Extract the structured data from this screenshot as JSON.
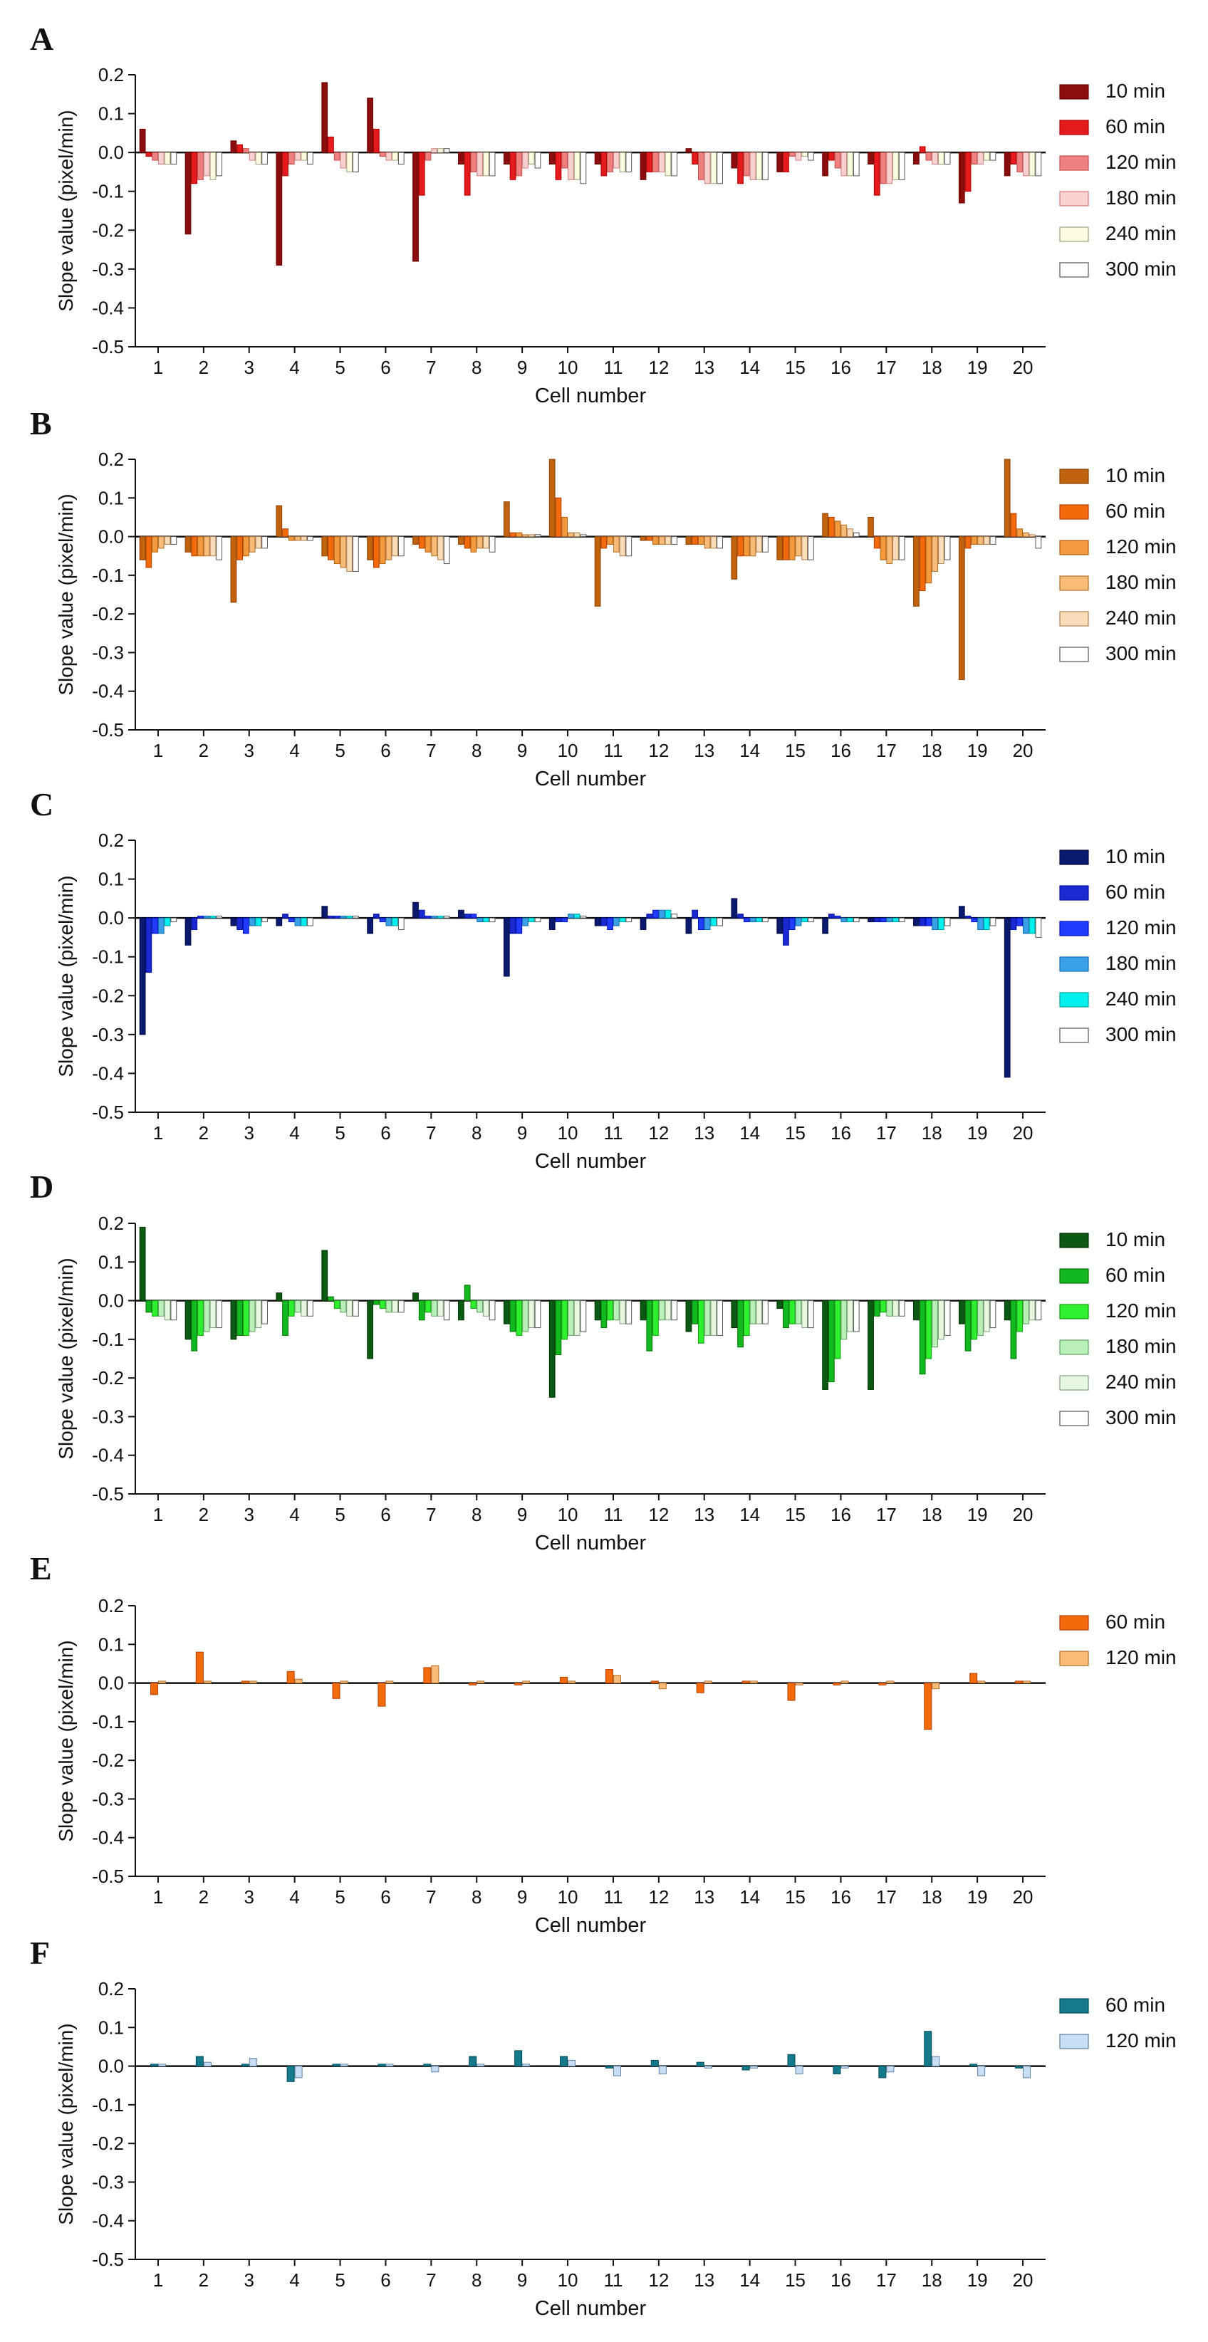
{
  "chart_data": [
    {
      "panel": "A",
      "type": "bar",
      "ylabel": "Slope value (pixel/min)",
      "xlabel": "Cell number",
      "ylim": [
        -0.5,
        0.2
      ],
      "yticks": [
        0.2,
        0.1,
        0.0,
        -0.1,
        -0.2,
        -0.3,
        -0.4,
        -0.5
      ],
      "yticklabels": [
        "0.2",
        "0.1",
        "0.0",
        "-0.1",
        "-0.2",
        "-0.3",
        "-0.4",
        "-0.5"
      ],
      "categories": [
        "1",
        "2",
        "3",
        "4",
        "5",
        "6",
        "7",
        "8",
        "9",
        "10",
        "11",
        "12",
        "13",
        "14",
        "15",
        "16",
        "17",
        "18",
        "19",
        "20"
      ],
      "legend_position": "right",
      "series": [
        {
          "name": "10 min",
          "color": "#8b0d0d",
          "stroke": "#6a0000",
          "values": [
            0.06,
            -0.21,
            0.03,
            -0.29,
            0.18,
            0.14,
            -0.28,
            -0.03,
            -0.03,
            -0.03,
            -0.03,
            -0.07,
            0.01,
            -0.04,
            -0.05,
            -0.06,
            -0.03,
            -0.03,
            -0.13,
            -0.06
          ]
        },
        {
          "name": "60 min",
          "color": "#e41a1c",
          "stroke": "#b00000",
          "values": [
            -0.01,
            -0.08,
            0.02,
            -0.06,
            0.04,
            0.06,
            -0.11,
            -0.11,
            -0.07,
            -0.07,
            -0.06,
            -0.05,
            -0.03,
            -0.08,
            -0.05,
            -0.02,
            -0.11,
            0.015,
            -0.1,
            -0.03
          ]
        },
        {
          "name": "120 min",
          "color": "#f08080",
          "stroke": "#c05050",
          "values": [
            -0.02,
            -0.07,
            0.01,
            -0.03,
            -0.02,
            -0.01,
            -0.02,
            -0.05,
            -0.06,
            -0.04,
            -0.05,
            -0.05,
            -0.07,
            -0.06,
            -0.01,
            -0.04,
            -0.08,
            -0.02,
            -0.03,
            -0.05
          ]
        },
        {
          "name": "180 min",
          "color": "#f8d0d0",
          "stroke": "#d08080",
          "values": [
            -0.03,
            -0.06,
            -0.02,
            -0.02,
            -0.04,
            -0.02,
            0.01,
            -0.06,
            -0.04,
            -0.07,
            -0.04,
            -0.05,
            -0.08,
            -0.07,
            -0.02,
            -0.06,
            -0.08,
            -0.03,
            -0.03,
            -0.06
          ]
        },
        {
          "name": "240 min",
          "color": "#fbfbe0",
          "stroke": "#a0a080",
          "values": [
            -0.03,
            -0.07,
            -0.03,
            -0.02,
            -0.05,
            -0.02,
            0.01,
            -0.06,
            -0.03,
            -0.07,
            -0.05,
            -0.06,
            -0.08,
            -0.07,
            -0.01,
            -0.06,
            -0.07,
            -0.03,
            -0.02,
            -0.06
          ]
        },
        {
          "name": "300 min",
          "color": "#ffffff",
          "stroke": "#555555",
          "values": [
            -0.03,
            -0.06,
            -0.03,
            -0.03,
            -0.05,
            -0.03,
            0.01,
            -0.06,
            -0.04,
            -0.08,
            -0.05,
            -0.06,
            -0.08,
            -0.07,
            -0.02,
            -0.06,
            -0.07,
            -0.03,
            -0.02,
            -0.06
          ]
        }
      ]
    },
    {
      "panel": "B",
      "type": "bar",
      "ylabel": "Slope value (pixel/min)",
      "xlabel": "Cell number",
      "ylim": [
        -0.5,
        0.2
      ],
      "yticks": [
        0.2,
        0.1,
        0.0,
        -0.1,
        -0.2,
        -0.3,
        -0.4,
        -0.5
      ],
      "yticklabels": [
        "0.2",
        "0.1",
        "0.0",
        "-0.1",
        "-0.2",
        "-0.3",
        "-0.4",
        "-0.5"
      ],
      "categories": [
        "1",
        "2",
        "3",
        "4",
        "5",
        "6",
        "7",
        "8",
        "9",
        "10",
        "11",
        "12",
        "13",
        "14",
        "15",
        "16",
        "17",
        "18",
        "19",
        "20"
      ],
      "legend_position": "right",
      "series": [
        {
          "name": "10 min",
          "color": "#c0620e",
          "stroke": "#8a4000",
          "values": [
            -0.06,
            -0.04,
            -0.17,
            0.08,
            -0.05,
            -0.06,
            -0.02,
            -0.02,
            0.09,
            0.2,
            -0.18,
            -0.01,
            -0.02,
            -0.11,
            -0.06,
            0.06,
            0.05,
            -0.18,
            -0.37,
            0.2
          ]
        },
        {
          "name": "60 min",
          "color": "#f26a0c",
          "stroke": "#b04000",
          "values": [
            -0.08,
            -0.05,
            -0.06,
            0.02,
            -0.06,
            -0.08,
            -0.03,
            -0.03,
            0.01,
            0.1,
            -0.03,
            -0.01,
            -0.02,
            -0.05,
            -0.06,
            0.05,
            -0.03,
            -0.14,
            -0.03,
            0.06
          ]
        },
        {
          "name": "120 min",
          "color": "#f49a3e",
          "stroke": "#b06010",
          "values": [
            -0.04,
            -0.05,
            -0.05,
            -0.01,
            -0.07,
            -0.07,
            -0.04,
            -0.04,
            0.01,
            0.05,
            -0.02,
            -0.02,
            -0.02,
            -0.05,
            -0.06,
            0.04,
            -0.06,
            -0.12,
            -0.02,
            0.02
          ]
        },
        {
          "name": "180 min",
          "color": "#f8bb78",
          "stroke": "#b07030",
          "values": [
            -0.03,
            -0.05,
            -0.04,
            -0.01,
            -0.08,
            -0.06,
            -0.05,
            -0.03,
            0.005,
            0.01,
            -0.04,
            -0.02,
            -0.03,
            -0.05,
            -0.05,
            0.03,
            -0.07,
            -0.09,
            -0.02,
            0.01
          ]
        },
        {
          "name": "240 min",
          "color": "#fbdcb8",
          "stroke": "#b08050",
          "values": [
            -0.02,
            -0.05,
            -0.03,
            -0.01,
            -0.09,
            -0.05,
            -0.06,
            -0.03,
            0.005,
            0.01,
            -0.05,
            -0.02,
            -0.03,
            -0.04,
            -0.06,
            0.02,
            -0.06,
            -0.07,
            -0.02,
            0.005
          ]
        },
        {
          "name": "300 min",
          "color": "#ffffff",
          "stroke": "#555555",
          "values": [
            -0.02,
            -0.06,
            -0.03,
            -0.01,
            -0.09,
            -0.05,
            -0.07,
            -0.04,
            0.005,
            0.005,
            -0.05,
            -0.02,
            -0.03,
            -0.04,
            -0.06,
            0.01,
            -0.06,
            -0.06,
            -0.02,
            -0.03
          ]
        }
      ]
    },
    {
      "panel": "C",
      "type": "bar",
      "ylabel": "Slope value (pixel/min)",
      "xlabel": "Cell number",
      "ylim": [
        -0.5,
        0.2
      ],
      "yticks": [
        0.2,
        0.1,
        0.0,
        -0.1,
        -0.2,
        -0.3,
        -0.4,
        -0.5
      ],
      "yticklabels": [
        "0.2",
        "0.1",
        "0.0",
        "-0.1",
        "-0.2",
        "-0.3",
        "-0.4",
        "-0.5"
      ],
      "categories": [
        "1",
        "2",
        "3",
        "4",
        "5",
        "6",
        "7",
        "8",
        "9",
        "10",
        "11",
        "12",
        "13",
        "14",
        "15",
        "16",
        "17",
        "18",
        "19",
        "20"
      ],
      "legend_position": "right",
      "series": [
        {
          "name": "10 min",
          "color": "#0a1a6e",
          "stroke": "#000840",
          "values": [
            -0.3,
            -0.07,
            -0.02,
            -0.02,
            0.03,
            -0.04,
            0.04,
            0.02,
            -0.15,
            -0.03,
            -0.02,
            -0.03,
            -0.04,
            0.05,
            -0.04,
            -0.04,
            -0.01,
            -0.02,
            0.03,
            -0.41
          ]
        },
        {
          "name": "60 min",
          "color": "#1a2ad0",
          "stroke": "#0010a0",
          "values": [
            -0.14,
            -0.03,
            -0.03,
            0.01,
            0.005,
            0.01,
            0.02,
            0.01,
            -0.04,
            -0.01,
            -0.02,
            0.01,
            0.02,
            0.01,
            -0.07,
            0.01,
            -0.01,
            -0.02,
            0.005,
            -0.03
          ]
        },
        {
          "name": "120 min",
          "color": "#1f3cff",
          "stroke": "#0010c0",
          "values": [
            -0.04,
            0.005,
            -0.04,
            -0.01,
            0.005,
            -0.01,
            0.005,
            0.01,
            -0.04,
            -0.01,
            -0.03,
            0.02,
            -0.03,
            -0.01,
            -0.03,
            0.005,
            -0.01,
            -0.02,
            -0.01,
            -0.02
          ]
        },
        {
          "name": "180 min",
          "color": "#3aa0e8",
          "stroke": "#1070b0",
          "values": [
            -0.04,
            0.005,
            -0.02,
            -0.02,
            0.005,
            -0.02,
            0.005,
            -0.01,
            -0.02,
            0.01,
            -0.02,
            0.02,
            -0.03,
            -0.01,
            -0.02,
            -0.01,
            -0.01,
            -0.03,
            -0.03,
            -0.04
          ]
        },
        {
          "name": "240 min",
          "color": "#00f0f0",
          "stroke": "#00a0a0",
          "values": [
            -0.02,
            0.005,
            -0.02,
            -0.02,
            0.005,
            -0.02,
            0.005,
            -0.01,
            -0.01,
            0.01,
            -0.01,
            0.02,
            -0.02,
            -0.01,
            -0.01,
            -0.01,
            -0.01,
            -0.03,
            -0.03,
            -0.04
          ]
        },
        {
          "name": "300 min",
          "color": "#ffffff",
          "stroke": "#555555",
          "values": [
            -0.01,
            0.005,
            -0.01,
            -0.02,
            0.005,
            -0.03,
            0.005,
            -0.01,
            -0.01,
            0.005,
            -0.01,
            0.01,
            -0.02,
            -0.01,
            -0.01,
            -0.01,
            -0.01,
            -0.02,
            -0.02,
            -0.05
          ]
        }
      ]
    },
    {
      "panel": "D",
      "type": "bar",
      "ylabel": "Slope value (pixel/min)",
      "xlabel": "Cell number",
      "ylim": [
        -0.5,
        0.2
      ],
      "yticks": [
        0.2,
        0.1,
        0.0,
        -0.1,
        -0.2,
        -0.3,
        -0.4,
        -0.5
      ],
      "yticklabels": [
        "0.2",
        "0.1",
        "0.0",
        "-0.1",
        "-0.2",
        "-0.3",
        "-0.4",
        "-0.5"
      ],
      "categories": [
        "1",
        "2",
        "3",
        "4",
        "5",
        "6",
        "7",
        "8",
        "9",
        "10",
        "11",
        "12",
        "13",
        "14",
        "15",
        "16",
        "17",
        "18",
        "19",
        "20"
      ],
      "legend_position": "right",
      "series": [
        {
          "name": "10 min",
          "color": "#0a5a14",
          "stroke": "#003000",
          "values": [
            0.19,
            -0.1,
            -0.1,
            0.02,
            0.13,
            -0.15,
            0.02,
            -0.05,
            -0.06,
            -0.25,
            -0.05,
            -0.05,
            -0.08,
            -0.07,
            -0.02,
            -0.23,
            -0.23,
            -0.05,
            -0.06,
            -0.05
          ]
        },
        {
          "name": "60 min",
          "color": "#12b820",
          "stroke": "#007000",
          "values": [
            -0.03,
            -0.13,
            -0.09,
            -0.09,
            0.01,
            -0.01,
            -0.05,
            0.04,
            -0.08,
            -0.14,
            -0.07,
            -0.13,
            -0.06,
            -0.12,
            -0.07,
            -0.21,
            -0.04,
            -0.19,
            -0.13,
            -0.15
          ]
        },
        {
          "name": "120 min",
          "color": "#2ef02e",
          "stroke": "#10a010",
          "values": [
            -0.04,
            -0.09,
            -0.09,
            -0.04,
            -0.02,
            -0.02,
            -0.03,
            -0.02,
            -0.09,
            -0.1,
            -0.05,
            -0.09,
            -0.11,
            -0.09,
            -0.06,
            -0.15,
            -0.03,
            -0.15,
            -0.1,
            -0.08
          ]
        },
        {
          "name": "180 min",
          "color": "#b8f0b8",
          "stroke": "#60a060",
          "values": [
            -0.04,
            -0.08,
            -0.08,
            -0.03,
            -0.03,
            -0.03,
            -0.04,
            -0.03,
            -0.08,
            -0.09,
            -0.05,
            -0.05,
            -0.09,
            -0.06,
            -0.06,
            -0.1,
            -0.04,
            -0.12,
            -0.09,
            -0.06
          ]
        },
        {
          "name": "240 min",
          "color": "#e8f8e0",
          "stroke": "#80a080",
          "values": [
            -0.05,
            -0.07,
            -0.07,
            -0.04,
            -0.04,
            -0.03,
            -0.04,
            -0.04,
            -0.07,
            -0.09,
            -0.06,
            -0.05,
            -0.09,
            -0.06,
            -0.07,
            -0.08,
            -0.04,
            -0.1,
            -0.08,
            -0.05
          ]
        },
        {
          "name": "300 min",
          "color": "#ffffff",
          "stroke": "#555555",
          "values": [
            -0.05,
            -0.07,
            -0.06,
            -0.04,
            -0.04,
            -0.03,
            -0.05,
            -0.05,
            -0.07,
            -0.08,
            -0.06,
            -0.05,
            -0.09,
            -0.06,
            -0.07,
            -0.08,
            -0.04,
            -0.09,
            -0.07,
            -0.05
          ]
        }
      ]
    },
    {
      "panel": "E",
      "type": "bar",
      "ylabel": "Slope value (pixel/min)",
      "xlabel": "Cell number",
      "ylim": [
        -0.5,
        0.2
      ],
      "yticks": [
        0.2,
        0.1,
        0.0,
        -0.1,
        -0.2,
        -0.3,
        -0.4,
        -0.5
      ],
      "yticklabels": [
        "0.2",
        "0.1",
        "0.0",
        "-0.1",
        "-0.2",
        "-0.3",
        "-0.4",
        "-0.5"
      ],
      "categories": [
        "1",
        "2",
        "3",
        "4",
        "5",
        "6",
        "7",
        "8",
        "9",
        "10",
        "11",
        "12",
        "13",
        "14",
        "15",
        "16",
        "17",
        "18",
        "19",
        "20"
      ],
      "legend_position": "right",
      "series": [
        {
          "name": "60 min",
          "color": "#f26a0c",
          "stroke": "#b04000",
          "values": [
            -0.03,
            0.08,
            0.005,
            0.03,
            -0.04,
            -0.06,
            0.04,
            -0.005,
            -0.005,
            0.015,
            0.035,
            0.005,
            -0.025,
            0.005,
            -0.045,
            -0.005,
            -0.005,
            -0.12,
            0.025,
            0.005
          ]
        },
        {
          "name": "120 min",
          "color": "#f8bb78",
          "stroke": "#b07030",
          "values": [
            0.005,
            0.005,
            0.005,
            0.01,
            0.005,
            0.005,
            0.045,
            0.005,
            0.005,
            0.005,
            0.02,
            -0.015,
            0.005,
            0.005,
            -0.005,
            0.005,
            0.005,
            -0.015,
            0.005,
            0.005
          ]
        }
      ]
    },
    {
      "panel": "F",
      "type": "bar",
      "ylabel": "Slope value (pixel/min)",
      "xlabel": "Cell number",
      "ylim": [
        -0.5,
        0.2
      ],
      "yticks": [
        0.2,
        0.1,
        0.0,
        -0.1,
        -0.2,
        -0.3,
        -0.4,
        -0.5
      ],
      "yticklabels": [
        "0.2",
        "0.1",
        "0.0",
        "-0.1",
        "-0.2",
        "-0.3",
        "-0.4",
        "-0.5"
      ],
      "categories": [
        "1",
        "2",
        "3",
        "4",
        "5",
        "6",
        "7",
        "8",
        "9",
        "10",
        "11",
        "12",
        "13",
        "14",
        "15",
        "16",
        "17",
        "18",
        "19",
        "20"
      ],
      "legend_position": "right",
      "series": [
        {
          "name": "60 min",
          "color": "#147a8c",
          "stroke": "#004a5a",
          "values": [
            0.005,
            0.025,
            0.005,
            -0.04,
            0.005,
            0.005,
            0.005,
            0.025,
            0.04,
            0.025,
            -0.005,
            0.015,
            0.01,
            -0.01,
            0.03,
            -0.02,
            -0.03,
            0.09,
            0.005,
            -0.005
          ]
        },
        {
          "name": "120 min",
          "color": "#c8def4",
          "stroke": "#6080a0",
          "values": [
            0.005,
            0.01,
            0.02,
            -0.03,
            0.005,
            0.005,
            -0.015,
            0.005,
            0.005,
            0.015,
            -0.025,
            -0.02,
            -0.005,
            -0.005,
            -0.02,
            -0.005,
            -0.015,
            0.025,
            -0.025,
            -0.03
          ]
        }
      ]
    }
  ]
}
